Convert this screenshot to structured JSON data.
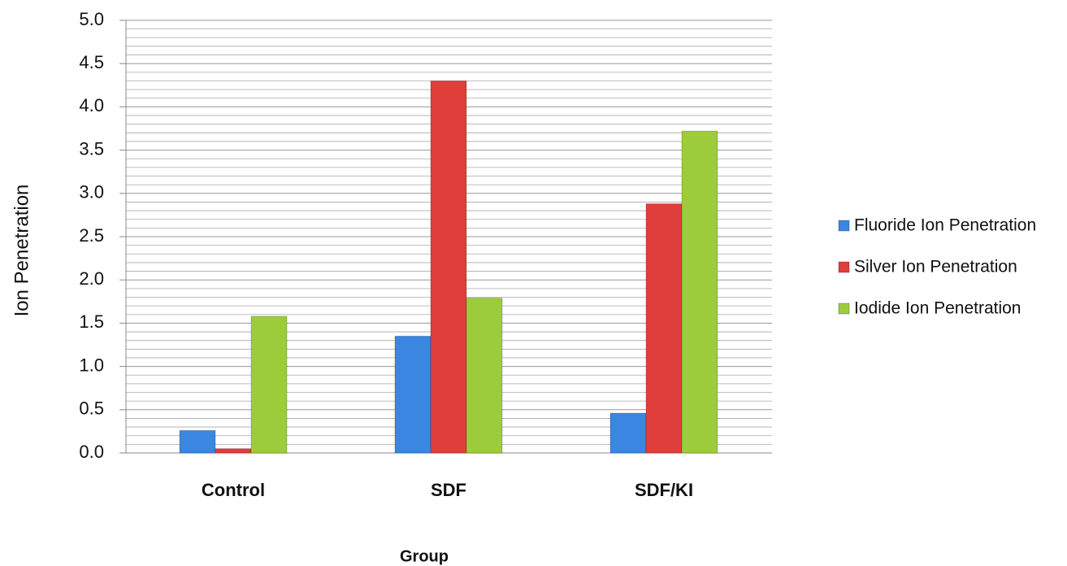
{
  "chart_data": {
    "type": "bar",
    "x_label": "Group",
    "y_label": "Ion Penetration",
    "categories": [
      "Control",
      "SDF",
      "SDF/KI"
    ],
    "series": [
      {
        "name": "Fluoride Ion Penetration",
        "color": "#3b86e0",
        "values": [
          0.26,
          1.35,
          0.46
        ]
      },
      {
        "name": "Silver Ion Penetration",
        "color": "#df3e3b",
        "values": [
          0.05,
          4.3,
          2.88
        ]
      },
      {
        "name": "Iodide Ion Penetration",
        "color": "#9ccc3c",
        "values": [
          1.58,
          1.79,
          3.72
        ]
      }
    ],
    "ylim": [
      0,
      5
    ],
    "yticks": [
      {
        "value": 0,
        "label": "0.0"
      },
      0.5,
      {
        "value": 1,
        "label": "1.0"
      },
      1.5,
      {
        "value": 2,
        "label": "2.0"
      },
      2.5,
      {
        "value": 3,
        "label": "3.0"
      },
      3.5,
      {
        "value": 4,
        "label": "4.0"
      },
      4.5,
      {
        "value": 5,
        "label": "5.0"
      }
    ],
    "grid": true,
    "minor_grid": 5,
    "legend": "right"
  }
}
